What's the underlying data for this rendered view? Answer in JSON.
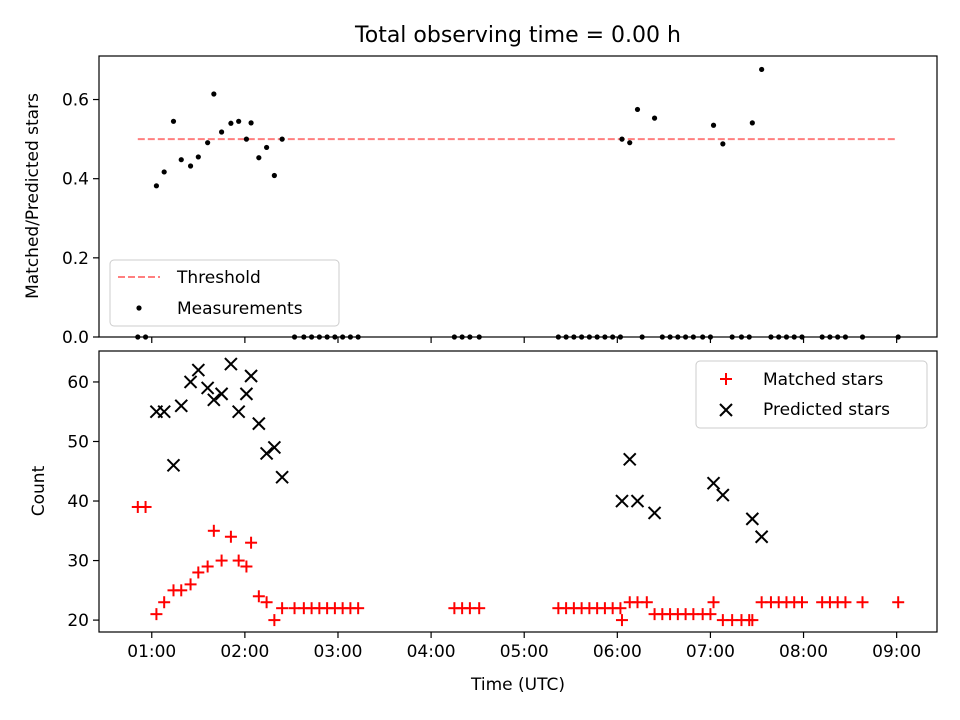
{
  "title": "Total observing time = 0.00 h",
  "chart_data": [
    {
      "type": "scatter",
      "ylabel": "Matched/Predicted stars",
      "xlim": [
        "00:26",
        "09:26"
      ],
      "ylim": [
        0,
        0.71
      ],
      "y_ticks": [
        0.0,
        0.2,
        0.4,
        0.6
      ],
      "y_tick_labels": [
        "0.0",
        "0.2",
        "0.4",
        "0.6"
      ],
      "legend_position": "lower-left",
      "series": [
        {
          "name": "Threshold",
          "style": "dashed-line",
          "color": "#ff7f7f",
          "points": [
            [
              "00:51",
              0.5
            ],
            [
              "08:59",
              0.5
            ]
          ]
        },
        {
          "name": "Measurements",
          "style": "dot",
          "color": "#000000",
          "points": [
            [
              "00:51",
              0.0
            ],
            [
              "00:56",
              0.0
            ],
            [
              "01:03",
              0.382
            ],
            [
              "01:08",
              0.417
            ],
            [
              "01:14",
              0.545
            ],
            [
              "01:19",
              0.448
            ],
            [
              "01:25",
              0.432
            ],
            [
              "01:30",
              0.455
            ],
            [
              "01:36",
              0.491
            ],
            [
              "01:40",
              0.614
            ],
            [
              "01:45",
              0.518
            ],
            [
              "01:51",
              0.54
            ],
            [
              "01:56",
              0.545
            ],
            [
              "02:01",
              0.5
            ],
            [
              "02:04",
              0.541
            ],
            [
              "02:09",
              0.453
            ],
            [
              "02:14",
              0.479
            ],
            [
              "02:19",
              0.408
            ],
            [
              "02:24",
              0.5
            ],
            [
              "02:32",
              0.0
            ],
            [
              "02:38",
              0.0
            ],
            [
              "02:43",
              0.0
            ],
            [
              "02:48",
              0.0
            ],
            [
              "02:53",
              0.0
            ],
            [
              "02:58",
              0.0
            ],
            [
              "03:03",
              0.0
            ],
            [
              "03:08",
              0.0
            ],
            [
              "03:13",
              0.0
            ],
            [
              "04:15",
              0.0
            ],
            [
              "04:20",
              0.0
            ],
            [
              "04:25",
              0.0
            ],
            [
              "04:31",
              0.0
            ],
            [
              "05:22",
              0.0
            ],
            [
              "05:27",
              0.0
            ],
            [
              "05:32",
              0.0
            ],
            [
              "05:37",
              0.0
            ],
            [
              "05:42",
              0.0
            ],
            [
              "05:47",
              0.0
            ],
            [
              "05:52",
              0.0
            ],
            [
              "05:57",
              0.0
            ],
            [
              "06:02",
              0.0
            ],
            [
              "06:03",
              0.5
            ],
            [
              "06:08",
              0.491
            ],
            [
              "06:13",
              0.575
            ],
            [
              "06:24",
              0.553
            ],
            [
              "06:16",
              0.0
            ],
            [
              "06:29",
              0.0
            ],
            [
              "06:34",
              0.0
            ],
            [
              "06:39",
              0.0
            ],
            [
              "06:44",
              0.0
            ],
            [
              "06:49",
              0.0
            ],
            [
              "06:55",
              0.0
            ],
            [
              "07:00",
              0.0
            ],
            [
              "07:02",
              0.535
            ],
            [
              "07:08",
              0.488
            ],
            [
              "07:14",
              0.0
            ],
            [
              "07:20",
              0.0
            ],
            [
              "07:25",
              0.0
            ],
            [
              "07:27",
              0.541
            ],
            [
              "07:33",
              0.676
            ],
            [
              "07:39",
              0.0
            ],
            [
              "07:44",
              0.0
            ],
            [
              "07:49",
              0.0
            ],
            [
              "07:54",
              0.0
            ],
            [
              "07:59",
              0.0
            ],
            [
              "08:12",
              0.0
            ],
            [
              "08:17",
              0.0
            ],
            [
              "08:22",
              0.0
            ],
            [
              "08:27",
              0.0
            ],
            [
              "08:38",
              0.0
            ],
            [
              "09:01",
              0.0
            ]
          ]
        }
      ]
    },
    {
      "type": "scatter",
      "xlabel": "Time (UTC)",
      "ylabel": "Count",
      "xlim": [
        "00:26",
        "09:26"
      ],
      "ylim": [
        18,
        65.2
      ],
      "y_ticks": [
        20,
        30,
        40,
        50,
        60
      ],
      "y_tick_labels": [
        "20",
        "30",
        "40",
        "50",
        "60"
      ],
      "x_ticks": [
        "01:00",
        "02:00",
        "03:00",
        "04:00",
        "05:00",
        "06:00",
        "07:00",
        "08:00",
        "09:00"
      ],
      "x_tick_labels": [
        "01:00",
        "02:00",
        "03:00",
        "04:00",
        "05:00",
        "06:00",
        "07:00",
        "08:00",
        "09:00"
      ],
      "legend_position": "top-right",
      "series": [
        {
          "name": "Matched stars",
          "marker": "+",
          "color": "#ff0000",
          "points": [
            [
              "00:51",
              39
            ],
            [
              "00:56",
              39
            ],
            [
              "01:03",
              21
            ],
            [
              "01:08",
              23
            ],
            [
              "01:14",
              25
            ],
            [
              "01:19",
              25
            ],
            [
              "01:25",
              26
            ],
            [
              "01:30",
              28
            ],
            [
              "01:36",
              29
            ],
            [
              "01:40",
              35
            ],
            [
              "01:45",
              30
            ],
            [
              "01:51",
              34
            ],
            [
              "01:56",
              30
            ],
            [
              "02:01",
              29
            ],
            [
              "02:04",
              33
            ],
            [
              "02:09",
              24
            ],
            [
              "02:14",
              23
            ],
            [
              "02:19",
              20
            ],
            [
              "02:24",
              22
            ],
            [
              "02:32",
              22
            ],
            [
              "02:38",
              22
            ],
            [
              "02:43",
              22
            ],
            [
              "02:48",
              22
            ],
            [
              "02:53",
              22
            ],
            [
              "02:58",
              22
            ],
            [
              "03:03",
              22
            ],
            [
              "03:08",
              22
            ],
            [
              "03:13",
              22
            ],
            [
              "04:15",
              22
            ],
            [
              "04:20",
              22
            ],
            [
              "04:25",
              22
            ],
            [
              "04:31",
              22
            ],
            [
              "05:22",
              22
            ],
            [
              "05:27",
              22
            ],
            [
              "05:32",
              22
            ],
            [
              "05:37",
              22
            ],
            [
              "05:42",
              22
            ],
            [
              "05:47",
              22
            ],
            [
              "05:52",
              22
            ],
            [
              "05:57",
              22
            ],
            [
              "06:02",
              22
            ],
            [
              "06:03",
              20
            ],
            [
              "06:08",
              23
            ],
            [
              "06:13",
              23
            ],
            [
              "06:19",
              23
            ],
            [
              "06:24",
              21
            ],
            [
              "06:29",
              21
            ],
            [
              "06:34",
              21
            ],
            [
              "06:39",
              21
            ],
            [
              "06:44",
              21
            ],
            [
              "06:49",
              21
            ],
            [
              "06:55",
              21
            ],
            [
              "07:00",
              21
            ],
            [
              "07:02",
              23
            ],
            [
              "07:08",
              20
            ],
            [
              "07:14",
              20
            ],
            [
              "07:20",
              20
            ],
            [
              "07:25",
              20
            ],
            [
              "07:27",
              20
            ],
            [
              "07:33",
              23
            ],
            [
              "07:39",
              23
            ],
            [
              "07:44",
              23
            ],
            [
              "07:49",
              23
            ],
            [
              "07:54",
              23
            ],
            [
              "07:59",
              23
            ],
            [
              "08:12",
              23
            ],
            [
              "08:17",
              23
            ],
            [
              "08:22",
              23
            ],
            [
              "08:27",
              23
            ],
            [
              "08:38",
              23
            ],
            [
              "09:01",
              23
            ]
          ]
        },
        {
          "name": "Predicted stars",
          "marker": "x",
          "color": "#000000",
          "points": [
            [
              "01:03",
              55
            ],
            [
              "01:08",
              55
            ],
            [
              "01:14",
              46
            ],
            [
              "01:19",
              56
            ],
            [
              "01:25",
              60
            ],
            [
              "01:30",
              62
            ],
            [
              "01:36",
              59
            ],
            [
              "01:40",
              57
            ],
            [
              "01:45",
              58
            ],
            [
              "01:51",
              63
            ],
            [
              "01:56",
              55
            ],
            [
              "02:01",
              58
            ],
            [
              "02:04",
              61
            ],
            [
              "02:09",
              53
            ],
            [
              "02:14",
              48
            ],
            [
              "02:19",
              49
            ],
            [
              "02:24",
              44
            ],
            [
              "06:03",
              40
            ],
            [
              "06:08",
              47
            ],
            [
              "06:13",
              40
            ],
            [
              "06:24",
              38
            ],
            [
              "07:02",
              43
            ],
            [
              "07:08",
              41
            ],
            [
              "07:27",
              37
            ],
            [
              "07:33",
              34
            ]
          ]
        }
      ]
    }
  ]
}
